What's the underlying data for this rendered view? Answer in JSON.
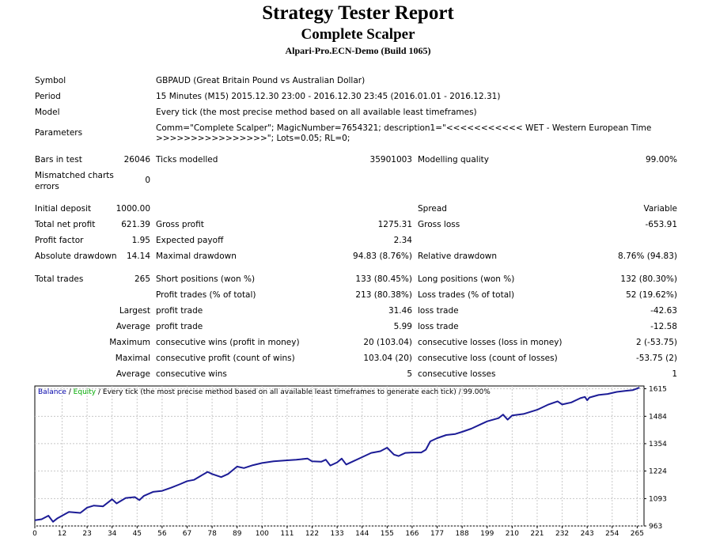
{
  "header": {
    "title": "Strategy Tester Report",
    "expert": "Complete Scalper",
    "server": "Alpari-Pro.ECN-Demo (Build 1065)"
  },
  "info": {
    "symbol_label": "Symbol",
    "symbol_value": "GBPAUD (Great Britain Pound vs Australian Dollar)",
    "period_label": "Period",
    "period_value": "15 Minutes (M15) 2015.12.30 23:00 - 2016.12.30 23:45 (2016.01.01 - 2016.12.31)",
    "model_label": "Model",
    "model_value": "Every tick (the most precise method based on all available least timeframes)",
    "parameters_label": "Parameters",
    "parameters_line1": "Comm=\"Complete Scalper\"; MagicNumber=7654321; description1=\"<<<<<<<<<<< WET - Western European Time",
    "parameters_line2": ">>>>>>>>>>>>>>>>\"; Lots=0.05; RL=0;"
  },
  "bars": {
    "bars_label": "Bars in test",
    "bars_value": "26046",
    "ticks_label": "Ticks modelled",
    "ticks_value": "35901003",
    "quality_label": "Modelling quality",
    "quality_value": "99.00%",
    "mismatch_label_1": "Mismatched charts",
    "mismatch_label_2": "errors",
    "mismatch_value": "0"
  },
  "results": {
    "initial_deposit_label": "Initial deposit",
    "initial_deposit_value": "1000.00",
    "spread_label": "Spread",
    "spread_value": "Variable",
    "net_profit_label": "Total net profit",
    "net_profit_value": "621.39",
    "gross_profit_label": "Gross profit",
    "gross_profit_value": "1275.31",
    "gross_loss_label": "Gross loss",
    "gross_loss_value": "-653.91",
    "profit_factor_label": "Profit factor",
    "profit_factor_value": "1.95",
    "expected_payoff_label": "Expected payoff",
    "expected_payoff_value": "2.34",
    "abs_dd_label": "Absolute drawdown",
    "abs_dd_value": "14.14",
    "max_dd_label": "Maximal drawdown",
    "max_dd_value": "94.83 (8.76%)",
    "rel_dd_label": "Relative drawdown",
    "rel_dd_value": "8.76% (94.83)"
  },
  "trades": {
    "total_label": "Total trades",
    "total_value": "265",
    "short_label": "Short positions (won %)",
    "short_value": "133 (80.45%)",
    "long_label": "Long positions (won %)",
    "long_value": "132 (80.30%)",
    "profit_trades_label": "Profit trades (% of total)",
    "profit_trades_value": "213 (80.38%)",
    "loss_trades_label": "Loss trades (% of total)",
    "loss_trades_value": "52 (19.62%)",
    "largest_label": "Largest",
    "largest_profit_label": "profit trade",
    "largest_profit_value": "31.46",
    "largest_loss_label": "loss trade",
    "largest_loss_value": "-42.63",
    "average_label": "Average",
    "average_profit_label": "profit trade",
    "average_profit_value": "5.99",
    "average_loss_label": "loss trade",
    "average_loss_value": "-12.58",
    "maximum_label": "Maximum",
    "max_wins_label": "consecutive wins (profit in money)",
    "max_wins_value": "20 (103.04)",
    "max_losses_label": "consecutive losses (loss in money)",
    "max_losses_value": "2 (-53.75)",
    "maximal_label": "Maximal",
    "maximal_profit_label": "consecutive profit (count of wins)",
    "maximal_profit_value": "103.04 (20)",
    "maximal_loss_label": "consecutive loss (count of losses)",
    "maximal_loss_value": "-53.75 (2)",
    "avg_cons_label": "Average",
    "avg_wins_label": "consecutive wins",
    "avg_wins_value": "5",
    "avg_losses_label": "consecutive losses",
    "avg_losses_value": "1"
  },
  "chart_legend": {
    "balance": "Balance",
    "sep1": " / ",
    "equity": "Equity",
    "rest": " / Every tick (the most precise method based on all available least timeframes to generate each tick) / 99.00%"
  },
  "colors": {
    "balance": "#0000aa",
    "equity": "#00aa00",
    "line": "#1c1c96",
    "grid": "#c8c8c8"
  },
  "chart_data": {
    "type": "line",
    "title": "",
    "xlabel": "",
    "ylabel": "",
    "x_ticks": [
      0,
      12,
      23,
      34,
      45,
      56,
      67,
      78,
      89,
      100,
      111,
      122,
      133,
      144,
      155,
      166,
      177,
      188,
      199,
      210,
      221,
      232,
      243,
      254,
      265
    ],
    "y_ticks": [
      963,
      1093,
      1224,
      1354,
      1484,
      1615
    ],
    "xlim": [
      0,
      268
    ],
    "ylim": [
      963,
      1628
    ],
    "grid": true,
    "series": [
      {
        "name": "Balance",
        "x": [
          0,
          3,
          6,
          8,
          10,
          12,
          15,
          20,
          23,
          26,
          30,
          34,
          36,
          40,
          44,
          46,
          48,
          52,
          56,
          60,
          64,
          67,
          70,
          76,
          78,
          82,
          85,
          89,
          92,
          96,
          100,
          105,
          111,
          115,
          120,
          122,
          126,
          128,
          130,
          133,
          135,
          137,
          140,
          144,
          148,
          152,
          155,
          158,
          160,
          163,
          166,
          170,
          172,
          174,
          177,
          181,
          185,
          188,
          192,
          196,
          199,
          204,
          206,
          208,
          210,
          215,
          221,
          226,
          230,
          232,
          236,
          240,
          242,
          243,
          244,
          248,
          252,
          256,
          260,
          263,
          266
        ],
        "values": [
          990,
          995,
          1012,
          983,
          1000,
          1012,
          1030,
          1025,
          1050,
          1060,
          1056,
          1090,
          1070,
          1096,
          1100,
          1086,
          1106,
          1125,
          1130,
          1145,
          1162,
          1176,
          1182,
          1220,
          1210,
          1195,
          1210,
          1245,
          1238,
          1252,
          1262,
          1270,
          1275,
          1278,
          1283,
          1270,
          1268,
          1278,
          1250,
          1265,
          1283,
          1255,
          1270,
          1290,
          1310,
          1318,
          1335,
          1302,
          1295,
          1310,
          1312,
          1312,
          1325,
          1365,
          1380,
          1395,
          1400,
          1410,
          1425,
          1445,
          1460,
          1475,
          1492,
          1468,
          1488,
          1495,
          1515,
          1540,
          1555,
          1540,
          1550,
          1570,
          1576,
          1560,
          1573,
          1585,
          1590,
          1600,
          1605,
          1608,
          1620
        ]
      }
    ]
  }
}
